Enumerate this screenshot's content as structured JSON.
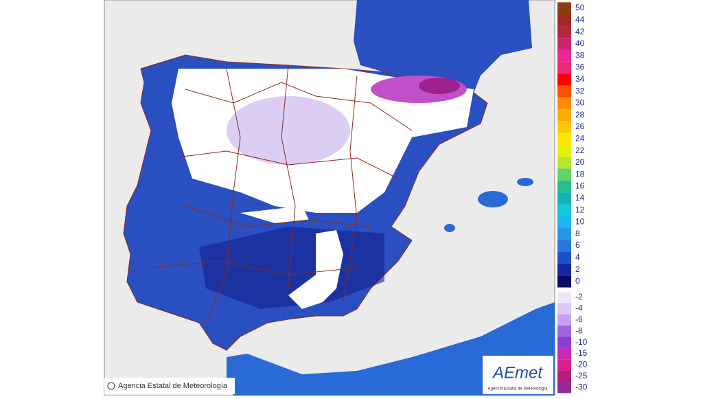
{
  "map": {
    "legend": {
      "entries": [
        {
          "value": 50,
          "color": "#8c3c14"
        },
        {
          "value": 44,
          "color": "#a0281e"
        },
        {
          "value": 42,
          "color": "#b4283c"
        },
        {
          "value": 40,
          "color": "#c8286e"
        },
        {
          "value": 38,
          "color": "#e6289b"
        },
        {
          "value": 36,
          "color": "#f02878"
        },
        {
          "value": 34,
          "color": "#ff0000"
        },
        {
          "value": 32,
          "color": "#ff5000"
        },
        {
          "value": 30,
          "color": "#ff8c00"
        },
        {
          "value": 28,
          "color": "#ffaa00"
        },
        {
          "value": 26,
          "color": "#ffc800"
        },
        {
          "value": 24,
          "color": "#ffe600"
        },
        {
          "value": 22,
          "color": "#e6f000"
        },
        {
          "value": 20,
          "color": "#b4e632"
        },
        {
          "value": 18,
          "color": "#64d264"
        },
        {
          "value": 16,
          "color": "#28be8c"
        },
        {
          "value": 14,
          "color": "#14b4b4"
        },
        {
          "value": 12,
          "color": "#14c8dc"
        },
        {
          "value": 10,
          "color": "#1eb4f0"
        },
        {
          "value": 8,
          "color": "#2896e6"
        },
        {
          "value": 6,
          "color": "#2878dc"
        },
        {
          "value": 4,
          "color": "#1e50c8"
        },
        {
          "value": 2,
          "color": "#1428a0"
        },
        {
          "value": 0,
          "color": "#0a0a64"
        },
        {
          "value": -2,
          "color": "#f0e6fa"
        },
        {
          "value": -4,
          "color": "#dcc8f5"
        },
        {
          "value": -6,
          "color": "#c8a0f0"
        },
        {
          "value": -8,
          "color": "#a064e6"
        },
        {
          "value": -10,
          "color": "#8c3cd2"
        },
        {
          "value": -15,
          "color": "#c828b4"
        },
        {
          "value": -20,
          "color": "#dc1e8c"
        },
        {
          "value": -25,
          "color": "#b41e78"
        },
        {
          "value": -30,
          "color": "#962896"
        }
      ]
    },
    "copyright": "Agencia Estatal de Meteorología",
    "logo": {
      "name": "AEmet",
      "subtitle": "Agencia Estatal de Meteorología"
    }
  }
}
